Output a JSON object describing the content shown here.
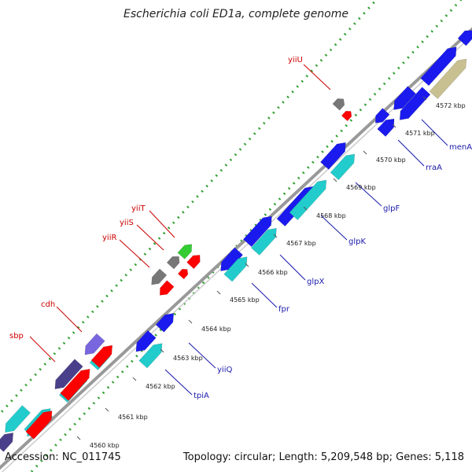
{
  "title": "Escherichia coli ED1a, complete genome",
  "footer": {
    "accession": "Accession: NC_011745",
    "summary": "Topology: circular; Length: 5,209,548 bp; Genes: 5,118"
  },
  "colors": {
    "backbone": "#999999",
    "gc_ticks": "#33a033",
    "cds_forward": "#1a1aee",
    "cds_reverse": "#ff0000",
    "cyan": "#22cccc",
    "slate": "#4a3f8a",
    "violet": "#7766dd",
    "grey": "#777777",
    "green": "#33cc33",
    "khaki": "#c8c090",
    "label_red": "#cc0000",
    "label_blue": "#1a1aaa"
  },
  "kbp_marks": [
    {
      "label": "4560 kbp"
    },
    {
      "label": "4561 kbp"
    },
    {
      "label": "4562 kbp"
    },
    {
      "label": "4563 kbp"
    },
    {
      "label": "4564 kbp"
    },
    {
      "label": "4565 kbp"
    },
    {
      "label": "4566 kbp"
    },
    {
      "label": "4567 kbp"
    },
    {
      "label": "4568 kbp"
    },
    {
      "label": "4569 kbp"
    },
    {
      "label": "4570 kbp"
    },
    {
      "label": "4571 kbp"
    },
    {
      "label": "4572 kbp"
    }
  ],
  "gene_labels": [
    {
      "name": "sbp",
      "strand": "red"
    },
    {
      "name": "cdh",
      "strand": "red"
    },
    {
      "name": "yiiR",
      "strand": "red"
    },
    {
      "name": "yiiS",
      "strand": "red"
    },
    {
      "name": "yiiT",
      "strand": "red"
    },
    {
      "name": "yiiU",
      "strand": "red"
    },
    {
      "name": "tpiA",
      "strand": "blue"
    },
    {
      "name": "yiiQ",
      "strand": "blue"
    },
    {
      "name": "fpr",
      "strand": "blue"
    },
    {
      "name": "glpX",
      "strand": "blue"
    },
    {
      "name": "glpK",
      "strand": "blue"
    },
    {
      "name": "glpF",
      "strand": "blue"
    },
    {
      "name": "rraA",
      "strand": "blue"
    },
    {
      "name": "menA",
      "strand": "blue"
    }
  ]
}
